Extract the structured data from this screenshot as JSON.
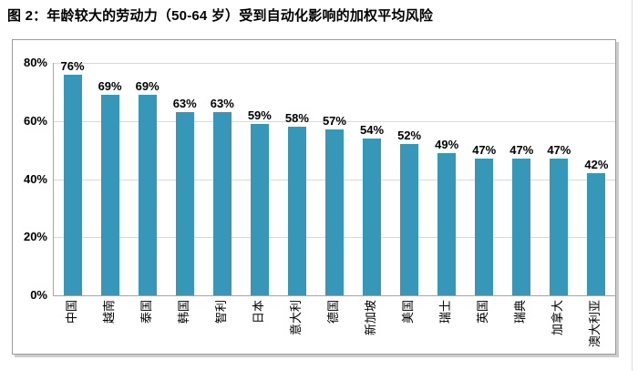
{
  "title": "图 2：年龄较大的劳动力（50-64 岁）受到自动化影响的加权平均风险",
  "chart_data": {
    "type": "bar",
    "title": "图 2：年龄较大的劳动力（50-64 岁）受到自动化影响的加权平均风险",
    "categories": [
      "中国",
      "越南",
      "泰国",
      "韩国",
      "智利",
      "日本",
      "意大利",
      "德国",
      "新加坡",
      "美国",
      "瑞士",
      "英国",
      "瑞典",
      "加拿大",
      "澳大利亚"
    ],
    "values": [
      76,
      69,
      69,
      63,
      63,
      59,
      58,
      57,
      54,
      52,
      49,
      47,
      47,
      47,
      42
    ],
    "data_labels": [
      "76%",
      "69%",
      "69%",
      "63%",
      "63%",
      "59%",
      "58%",
      "57%",
      "54%",
      "52%",
      "49%",
      "47%",
      "47%",
      "47%",
      "42%"
    ],
    "xlabel": "",
    "ylabel": "",
    "ylim": [
      0,
      80
    ],
    "yticks": {
      "values": [
        0,
        20,
        40,
        60,
        80
      ],
      "labels": [
        "0%",
        "20%",
        "40%",
        "60%",
        "80%"
      ]
    },
    "grid": true,
    "legend": "none"
  },
  "colors": {
    "bar": "#3697B8",
    "gridline": "#d9d9d9",
    "axis_border": "#a6a6a6",
    "figure_border": "#9b9b9b",
    "shadow": "#cccccc",
    "text": "#000000",
    "page_edge": "#dcdcdc"
  }
}
